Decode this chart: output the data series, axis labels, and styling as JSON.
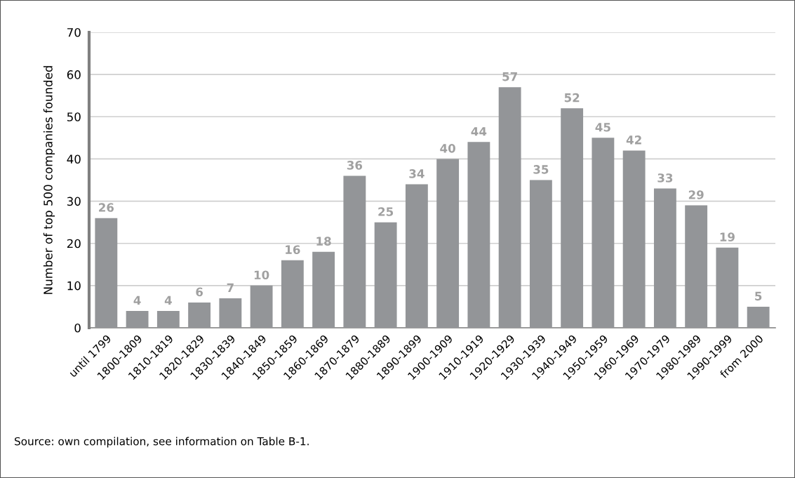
{
  "chart_data": {
    "type": "bar",
    "ylabel": "Number of top 500 companies founded",
    "categories": [
      "until 1799",
      "1800-1809",
      "1810-1819",
      "1820-1829",
      "1830-1839",
      "1840-1849",
      "1850-1859",
      "1860-1869",
      "1870-1879",
      "1880-1889",
      "1890-1899",
      "1900-1909",
      "1910-1919",
      "1920-1929",
      "1930-1939",
      "1940-1949",
      "1950-1959",
      "1960-1969",
      "1970-1979",
      "1980-1989",
      "1990-1999",
      "from 2000"
    ],
    "values": [
      26,
      4,
      4,
      6,
      7,
      10,
      16,
      18,
      36,
      25,
      34,
      40,
      44,
      57,
      35,
      52,
      45,
      42,
      33,
      29,
      19,
      5
    ],
    "color": "#939598",
    "ylim": [
      0,
      70
    ],
    "yticks": [
      0,
      10,
      20,
      30,
      40,
      50,
      60,
      70
    ],
    "grid": "y",
    "data_labels": true,
    "annotations": [
      "Source: own compilation, see information on Table B-1."
    ]
  }
}
